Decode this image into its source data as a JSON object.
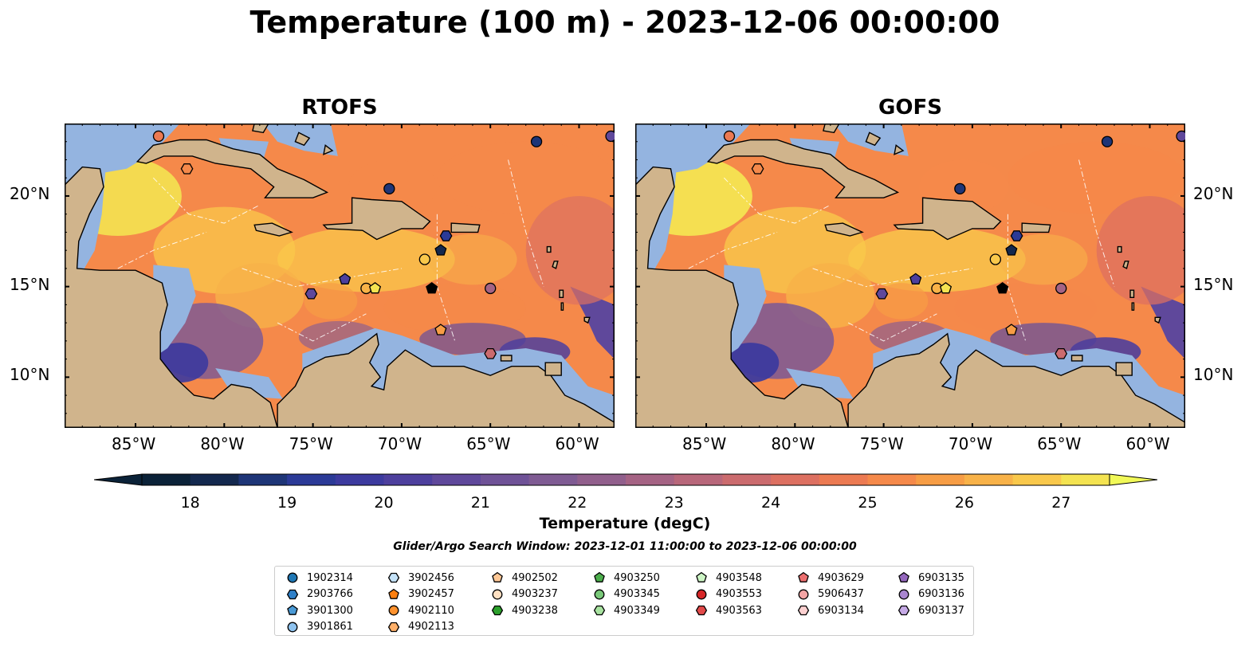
{
  "title": "Temperature (100 m) - 2023-12-06 00:00:00",
  "panels": [
    {
      "title": "RTOFS"
    },
    {
      "title": "GOFS"
    }
  ],
  "lon_ticks": [
    "85°W",
    "80°W",
    "75°W",
    "70°W",
    "65°W",
    "60°W"
  ],
  "lat_ticks": [
    "20°N",
    "15°N",
    "10°N"
  ],
  "colorbar": {
    "label": "Temperature (degC)",
    "ticks": [
      "18",
      "19",
      "20",
      "21",
      "22",
      "23",
      "24",
      "25",
      "26",
      "27"
    ],
    "min": 18,
    "max": 27,
    "step": 0.5,
    "colors": [
      "#0b2238",
      "#13284e",
      "#1e3577",
      "#2b3a97",
      "#3c3a9e",
      "#4d3f9d",
      "#5f489b",
      "#6f5297",
      "#7f5b93",
      "#915f8c",
      "#a56384",
      "#b8677a",
      "#cb6b6e",
      "#dd7061",
      "#ec7a52",
      "#f5894a",
      "#f79d45",
      "#f8b248",
      "#f9c84b",
      "#f4e351"
    ],
    "under_color": "#0b2238",
    "over_color": "#f1f958"
  },
  "search_window": "Glider/Argo Search Window: 2023-12-01 11:00:00 to 2023-12-06 00:00:00",
  "colors": {
    "land": "#d0b48c",
    "shelf": "#94b4e0",
    "deep_outside": "#05263a"
  },
  "legend": {
    "columns": [
      [
        {
          "id": "1902314",
          "shape": "circle",
          "color": "#1f77b4"
        },
        {
          "id": "2903766",
          "shape": "hexagon",
          "color": "#2f80c8"
        },
        {
          "id": "3901300",
          "shape": "pentagon",
          "color": "#4a9ad6"
        },
        {
          "id": "3901861",
          "shape": "circle",
          "color": "#8fc3ef"
        }
      ],
      [
        {
          "id": "3902456",
          "shape": "hexagon",
          "color": "#c4e2f8"
        },
        {
          "id": "3902457",
          "shape": "pentagon",
          "color": "#ff7f0e"
        },
        {
          "id": "4902110",
          "shape": "circle",
          "color": "#ff922e"
        },
        {
          "id": "4902113",
          "shape": "hexagon",
          "color": "#ffb06a"
        }
      ],
      [
        {
          "id": "4902502",
          "shape": "pentagon",
          "color": "#ffc896"
        },
        {
          "id": "4903237",
          "shape": "circle",
          "color": "#ffe0c2"
        },
        {
          "id": "4903238",
          "shape": "hexagon",
          "color": "#2ca02c"
        }
      ],
      [
        {
          "id": "4903250",
          "shape": "pentagon",
          "color": "#4cae4c"
        },
        {
          "id": "4903345",
          "shape": "circle",
          "color": "#79c879"
        },
        {
          "id": "4903349",
          "shape": "hexagon",
          "color": "#a8e2a0"
        }
      ],
      [
        {
          "id": "4903548",
          "shape": "pentagon",
          "color": "#cdf5c5"
        },
        {
          "id": "4903553",
          "shape": "circle",
          "color": "#d62728"
        },
        {
          "id": "4903563",
          "shape": "hexagon",
          "color": "#e24a4a"
        }
      ],
      [
        {
          "id": "4903629",
          "shape": "pentagon",
          "color": "#ec6f6f"
        },
        {
          "id": "5906437",
          "shape": "circle",
          "color": "#f4a5a5"
        },
        {
          "id": "6903134",
          "shape": "hexagon",
          "color": "#fbd0d0"
        }
      ],
      [
        {
          "id": "6903135",
          "shape": "pentagon",
          "color": "#9467bd"
        },
        {
          "id": "6903136",
          "shape": "circle",
          "color": "#a986d0"
        },
        {
          "id": "6903137",
          "shape": "hexagon",
          "color": "#c6aae6"
        }
      ]
    ]
  }
}
